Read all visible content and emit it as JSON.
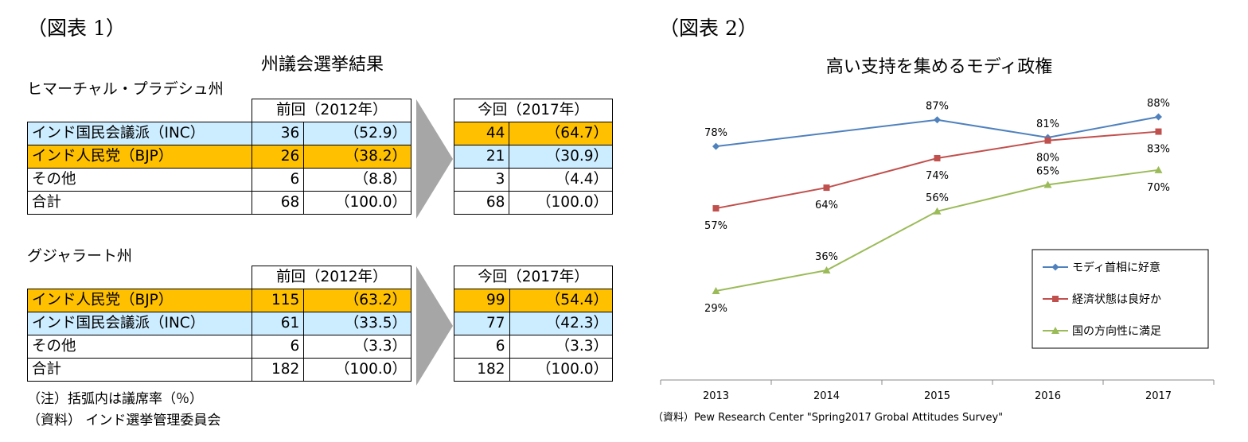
{
  "left": {
    "fig_label": "（図表 1）",
    "title": "州議会選挙結果",
    "states": [
      {
        "name": "ヒマーチャル・プラデシュ州",
        "prev_header": "前回（2012年）",
        "curr_header": "今回（2017年）",
        "rows": [
          {
            "party": "インド国民会議派（INC）",
            "prev_seats": "36",
            "prev_pct": "（52.9）",
            "curr_seats": "44",
            "curr_pct": "（64.7）",
            "label_color": "#ccecff",
            "prev_color": "#ccecff",
            "curr_color": "#ffc000"
          },
          {
            "party": "インド人民党（BJP）",
            "prev_seats": "26",
            "prev_pct": "（38.2）",
            "curr_seats": "21",
            "curr_pct": "（30.9）",
            "label_color": "#ffc000",
            "prev_color": "#ffc000",
            "curr_color": "#ccecff"
          },
          {
            "party": "その他",
            "prev_seats": "6",
            "prev_pct": "（8.8）",
            "curr_seats": "3",
            "curr_pct": "（4.4）",
            "label_color": "#ffffff",
            "prev_color": "#ffffff",
            "curr_color": "#ffffff"
          },
          {
            "party": "合計",
            "prev_seats": "68",
            "prev_pct": "（100.0）",
            "curr_seats": "68",
            "curr_pct": "（100.0）",
            "label_color": "#ffffff",
            "prev_color": "#ffffff",
            "curr_color": "#ffffff"
          }
        ]
      },
      {
        "name": "グジャラート州",
        "prev_header": "前回（2012年）",
        "curr_header": "今回（2017年）",
        "rows": [
          {
            "party": "インド人民党（BJP）",
            "prev_seats": "115",
            "prev_pct": "（63.2）",
            "curr_seats": "99",
            "curr_pct": "（54.4）",
            "label_color": "#ffc000",
            "prev_color": "#ffc000",
            "curr_color": "#ffc000"
          },
          {
            "party": "インド国民会議派（INC）",
            "prev_seats": "61",
            "prev_pct": "（33.5）",
            "curr_seats": "77",
            "curr_pct": "（42.3）",
            "label_color": "#ccecff",
            "prev_color": "#ccecff",
            "curr_color": "#ccecff"
          },
          {
            "party": "その他",
            "prev_seats": "6",
            "prev_pct": "（3.3）",
            "curr_seats": "6",
            "curr_pct": "（3.3）",
            "label_color": "#ffffff",
            "prev_color": "#ffffff",
            "curr_color": "#ffffff"
          },
          {
            "party": "合計",
            "prev_seats": "182",
            "prev_pct": "（100.0）",
            "curr_seats": "182",
            "curr_pct": "（100.0）",
            "label_color": "#ffffff",
            "prev_color": "#ffffff",
            "curr_color": "#ffffff"
          }
        ]
      }
    ],
    "note": "（注）括弧内は議席率（％）",
    "source": "（資料） インド選挙管理委員会"
  },
  "right": {
    "fig_label": "（図表 2）",
    "source": "（資料）Pew Research Center \"Spring2017 Grobal Attitudes Survey\""
  },
  "chart_data": {
    "type": "line",
    "title": "高い支持を集めるモディ政権",
    "categories": [
      "2013",
      "2014",
      "2015",
      "2016",
      "2017"
    ],
    "series": [
      {
        "name": "モディ首相に好意",
        "color": "#4f81bd",
        "marker": "diamond",
        "values": [
          78,
          null,
          87,
          81,
          88
        ],
        "labels": [
          "78%",
          null,
          "87%",
          "81%",
          "88%"
        ]
      },
      {
        "name": "経済状態は良好か",
        "color": "#c0504d",
        "marker": "square",
        "values": [
          57,
          64,
          74,
          80,
          83
        ],
        "labels": [
          "57%",
          "64%",
          "74%",
          "80%",
          "83%"
        ]
      },
      {
        "name": "国の方向性に満足",
        "color": "#9bbb59",
        "marker": "triangle",
        "values": [
          29,
          36,
          56,
          65,
          70
        ],
        "labels": [
          "29%",
          "36%",
          "56%",
          "65%",
          "70%"
        ]
      }
    ],
    "legend_position": "bottom-right",
    "grid": false
  }
}
